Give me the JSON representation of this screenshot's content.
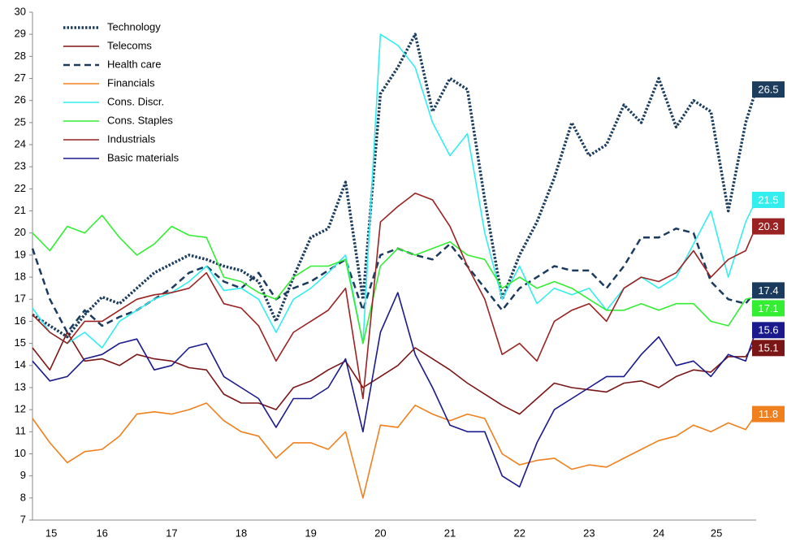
{
  "chart_data": {
    "type": "line",
    "x": [
      2015.5,
      2015.75,
      2016,
      2016.25,
      2016.5,
      2016.75,
      2017,
      2017.25,
      2017.5,
      2017.75,
      2018,
      2018.25,
      2018.5,
      2018.75,
      2019,
      2019.25,
      2019.5,
      2019.75,
      2020,
      2020.25,
      2020.5,
      2020.75,
      2021,
      2021.25,
      2021.5,
      2021.75,
      2022,
      2022.25,
      2022.5,
      2022.75,
      2023,
      2023.25,
      2023.5,
      2023.75,
      2024,
      2024.25,
      2024.5,
      2024.75,
      2025,
      2025.25,
      2025.5,
      2025.75,
      2025.9
    ],
    "xlim": [
      2015.5,
      2025.9
    ],
    "xticks": [
      {
        "value": 2015.77,
        "label": "15"
      },
      {
        "value": 2016.5,
        "label": "16"
      },
      {
        "value": 2017.5,
        "label": "17"
      },
      {
        "value": 2018.5,
        "label": "18"
      },
      {
        "value": 2019.5,
        "label": "19"
      },
      {
        "value": 2020.5,
        "label": "20"
      },
      {
        "value": 2021.5,
        "label": "21"
      },
      {
        "value": 2022.5,
        "label": "22"
      },
      {
        "value": 2023.5,
        "label": "23"
      },
      {
        "value": 2024.5,
        "label": "24"
      },
      {
        "value": 2025.33,
        "label": "25"
      }
    ],
    "ylim": [
      7,
      30
    ],
    "yticks": [
      7,
      8,
      9,
      10,
      11,
      12,
      13,
      14,
      15,
      16,
      17,
      18,
      19,
      20,
      21,
      22,
      23,
      24,
      25,
      26,
      27,
      28,
      29,
      30
    ],
    "grid": false,
    "legend": "top-left",
    "series": [
      {
        "name": "Technology",
        "color": "#1c3d5e",
        "style": "dotted",
        "values": [
          16.3,
          15.8,
          15.3,
          16.3,
          17.1,
          16.8,
          17.5,
          18.2,
          18.6,
          19.0,
          18.8,
          18.5,
          18.3,
          17.8,
          16.0,
          18.0,
          19.8,
          20.2,
          22.3,
          17.0,
          26.3,
          27.5,
          29.0,
          25.5,
          27.0,
          26.5,
          21.5,
          17.0,
          19.0,
          20.5,
          22.5,
          25.0,
          23.5,
          24.0,
          25.8,
          25.0,
          27.0,
          24.8,
          26.0,
          25.5,
          21.0,
          25.0,
          26.5
        ]
      },
      {
        "name": "Telecoms",
        "color": "#7b1616",
        "style": "solid",
        "values": [
          14.8,
          13.8,
          15.5,
          14.2,
          14.3,
          14.0,
          14.5,
          14.3,
          14.2,
          13.9,
          13.8,
          12.7,
          12.3,
          12.3,
          12.0,
          13.0,
          13.3,
          13.8,
          14.2,
          13.0,
          13.5,
          14.0,
          14.8,
          14.3,
          13.8,
          13.2,
          12.7,
          12.2,
          11.8,
          12.5,
          13.2,
          13.0,
          12.9,
          12.8,
          13.2,
          13.3,
          13.0,
          13.5,
          13.8,
          13.7,
          14.4,
          14.4,
          15.1
        ]
      },
      {
        "name": "Health care",
        "color": "#1a3a5e",
        "style": "dashed",
        "values": [
          19.3,
          17.0,
          15.5,
          16.5,
          15.8,
          16.2,
          16.5,
          17.0,
          17.5,
          18.2,
          18.5,
          17.8,
          17.5,
          18.2,
          17.0,
          17.5,
          17.8,
          18.3,
          18.8,
          16.5,
          19.0,
          19.3,
          19.0,
          18.8,
          19.5,
          18.5,
          17.5,
          16.5,
          17.5,
          18.0,
          18.5,
          18.3,
          18.3,
          17.5,
          18.5,
          19.8,
          19.8,
          20.2,
          20.0,
          17.8,
          17.0,
          16.8,
          17.4
        ]
      },
      {
        "name": "Financials",
        "color": "#f0801e",
        "style": "solid",
        "values": [
          11.6,
          10.5,
          9.6,
          10.1,
          10.2,
          10.8,
          11.8,
          11.9,
          11.8,
          12.0,
          12.3,
          11.5,
          11.0,
          10.8,
          9.8,
          10.5,
          10.5,
          10.2,
          11.0,
          8.0,
          11.3,
          11.2,
          12.2,
          11.8,
          11.5,
          11.8,
          11.6,
          10.0,
          9.5,
          9.7,
          9.8,
          9.3,
          9.5,
          9.4,
          9.8,
          10.2,
          10.6,
          10.8,
          11.3,
          11.0,
          11.4,
          11.1,
          11.8
        ]
      },
      {
        "name": "Cons. Discr.",
        "color": "#33eeee",
        "style": "solid",
        "values": [
          16.6,
          15.5,
          15.0,
          15.5,
          14.8,
          16.0,
          16.5,
          17.0,
          17.3,
          17.8,
          18.5,
          17.4,
          17.5,
          17.0,
          15.5,
          17.0,
          17.5,
          18.2,
          19.0,
          15.0,
          29.0,
          28.5,
          27.5,
          25.0,
          23.5,
          24.5,
          20.0,
          17.0,
          18.5,
          16.8,
          17.5,
          17.2,
          17.5,
          16.5,
          17.5,
          18.0,
          17.5,
          18.0,
          19.5,
          21.0,
          18.0,
          20.5,
          21.5
        ]
      },
      {
        "name": "Cons. Staples",
        "color": "#33ee33",
        "style": "solid",
        "values": [
          20.0,
          19.2,
          20.3,
          20.0,
          20.8,
          19.8,
          19.0,
          19.5,
          20.3,
          19.9,
          19.8,
          18.0,
          17.8,
          17.3,
          17.0,
          18.0,
          18.5,
          18.5,
          18.8,
          15.0,
          18.5,
          19.3,
          19.0,
          19.3,
          19.6,
          19.0,
          18.8,
          17.5,
          18.0,
          17.5,
          17.8,
          17.5,
          17.0,
          16.5,
          16.5,
          16.8,
          16.5,
          16.8,
          16.8,
          16.0,
          15.8,
          17.0,
          17.1
        ]
      },
      {
        "name": "Industrials",
        "color": "#9b2222",
        "style": "solid",
        "values": [
          16.3,
          15.5,
          15.0,
          16.0,
          16.0,
          16.5,
          17.0,
          17.2,
          17.3,
          17.5,
          18.2,
          16.8,
          16.6,
          15.8,
          14.2,
          15.5,
          16.0,
          16.5,
          17.5,
          12.5,
          20.5,
          21.2,
          21.8,
          21.5,
          20.3,
          18.5,
          17.0,
          14.5,
          15.0,
          14.2,
          16.0,
          16.5,
          16.8,
          16.0,
          17.5,
          18.0,
          17.8,
          18.2,
          19.2,
          18.0,
          18.8,
          19.2,
          20.3
        ]
      },
      {
        "name": "Basic materials",
        "color": "#1a1a8c",
        "style": "solid",
        "values": [
          14.2,
          13.3,
          13.5,
          14.3,
          14.5,
          15.0,
          15.2,
          13.8,
          14.0,
          14.8,
          15.0,
          13.5,
          13.0,
          12.5,
          11.2,
          12.5,
          12.5,
          13.0,
          14.3,
          11.0,
          15.5,
          17.3,
          14.5,
          13.0,
          11.3,
          11.0,
          11.0,
          9.0,
          8.5,
          10.5,
          12.0,
          12.5,
          13.0,
          13.5,
          13.5,
          14.5,
          15.3,
          14.0,
          14.2,
          13.5,
          14.5,
          14.2,
          15.6
        ]
      }
    ]
  }
}
